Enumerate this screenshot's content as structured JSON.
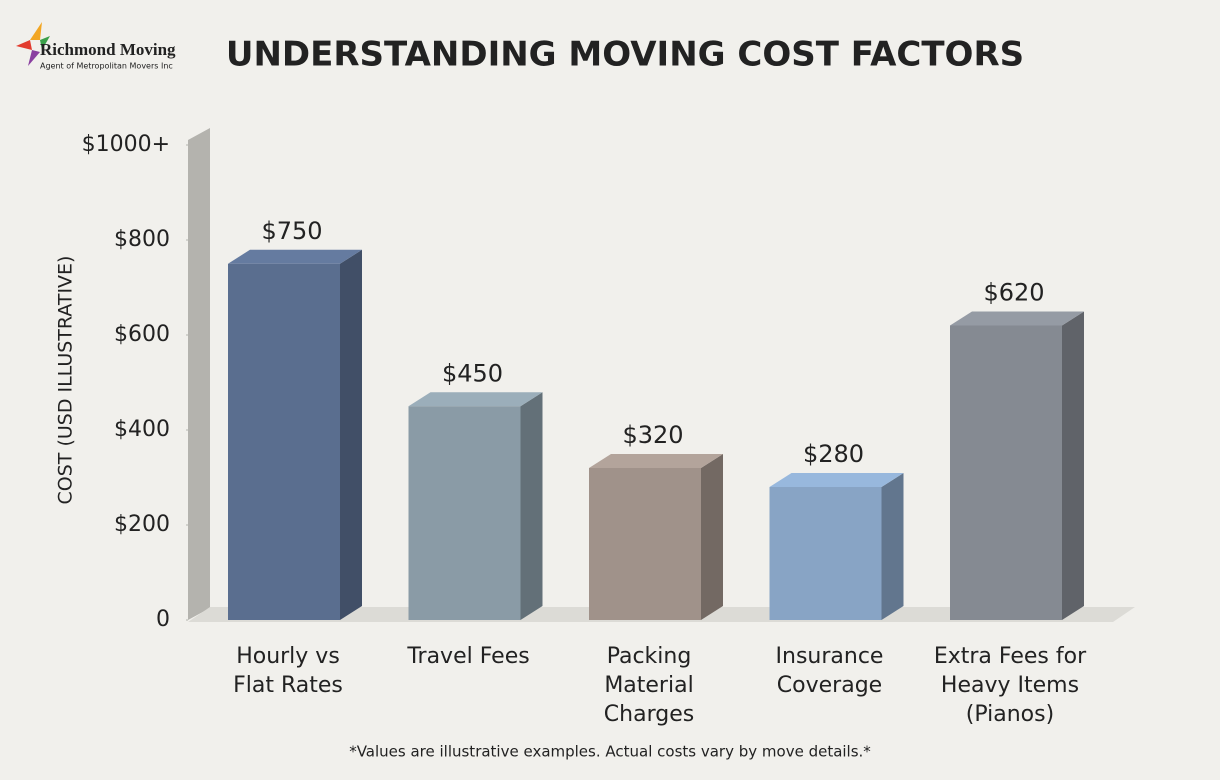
{
  "logo": {
    "name": "Richmond Moving",
    "tagline": "Agent of Metropolitan Movers Inc"
  },
  "chart_data": {
    "type": "bar3d",
    "title": "UNDERSTANDING MOVING COST FACTORS",
    "y_label": "COST (USD ILLUSTRATIVE)",
    "categories": [
      "Hourly vs\nFlat Rates",
      "Travel Fees",
      "Packing\nMaterial\nCharges",
      "Insurance\nCoverage",
      "Extra Fees for\nHeavy Items\n(Pianos)"
    ],
    "values": [
      750,
      450,
      320,
      280,
      620
    ],
    "value_labels": [
      "$750",
      "$450",
      "$320",
      "$280",
      "$620"
    ],
    "colors": [
      "#5a6e8f",
      "#8a9ba6",
      "#a0928a",
      "#88a4c5",
      "#858a92"
    ],
    "ylim": [
      0,
      1000
    ],
    "yticks": [
      0,
      {
        "value": 200,
        "label": "$200"
      },
      {
        "value": 400,
        "label": "$400"
      },
      {
        "value": 600,
        "label": "$600"
      },
      {
        "value": 800,
        "label": "$800"
      },
      {
        "value": 1000,
        "label": "$1000+"
      }
    ],
    "footnote": "*Values are illustrative examples. Actual costs vary by move details.*"
  }
}
